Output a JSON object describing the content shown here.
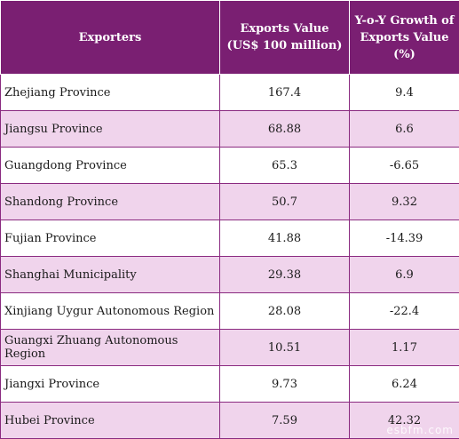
{
  "table": {
    "headers": [
      "Exporters",
      "Exports Value (US$ 100 million)",
      "Y-o-Y Growth of Exports Value (%)"
    ],
    "rows": [
      [
        "Zhejiang Province",
        "167.4",
        "9.4"
      ],
      [
        "Jiangsu Province",
        "68.88",
        "6.6"
      ],
      [
        "Guangdong Province",
        "65.3",
        "-6.65"
      ],
      [
        "Shandong Province",
        "50.7",
        "9.32"
      ],
      [
        "Fujian Province",
        "41.88",
        "-14.39"
      ],
      [
        "Shanghai Municipality",
        "29.38",
        "6.9"
      ],
      [
        "Xinjiang Uygur Autonomous Region",
        "28.08",
        "-22.4"
      ],
      [
        "Guangxi Zhuang Autonomous Region",
        "10.51",
        "1.17"
      ],
      [
        "Jiangxi Province",
        "9.73",
        "6.24"
      ],
      [
        "Hubei Province",
        "7.59",
        "42.32"
      ]
    ]
  },
  "colors": {
    "header_bg": "#7a1f72",
    "stripe_bg": "#f0d4ec",
    "border": "#8a2a80"
  },
  "watermark": "esbfm.com"
}
